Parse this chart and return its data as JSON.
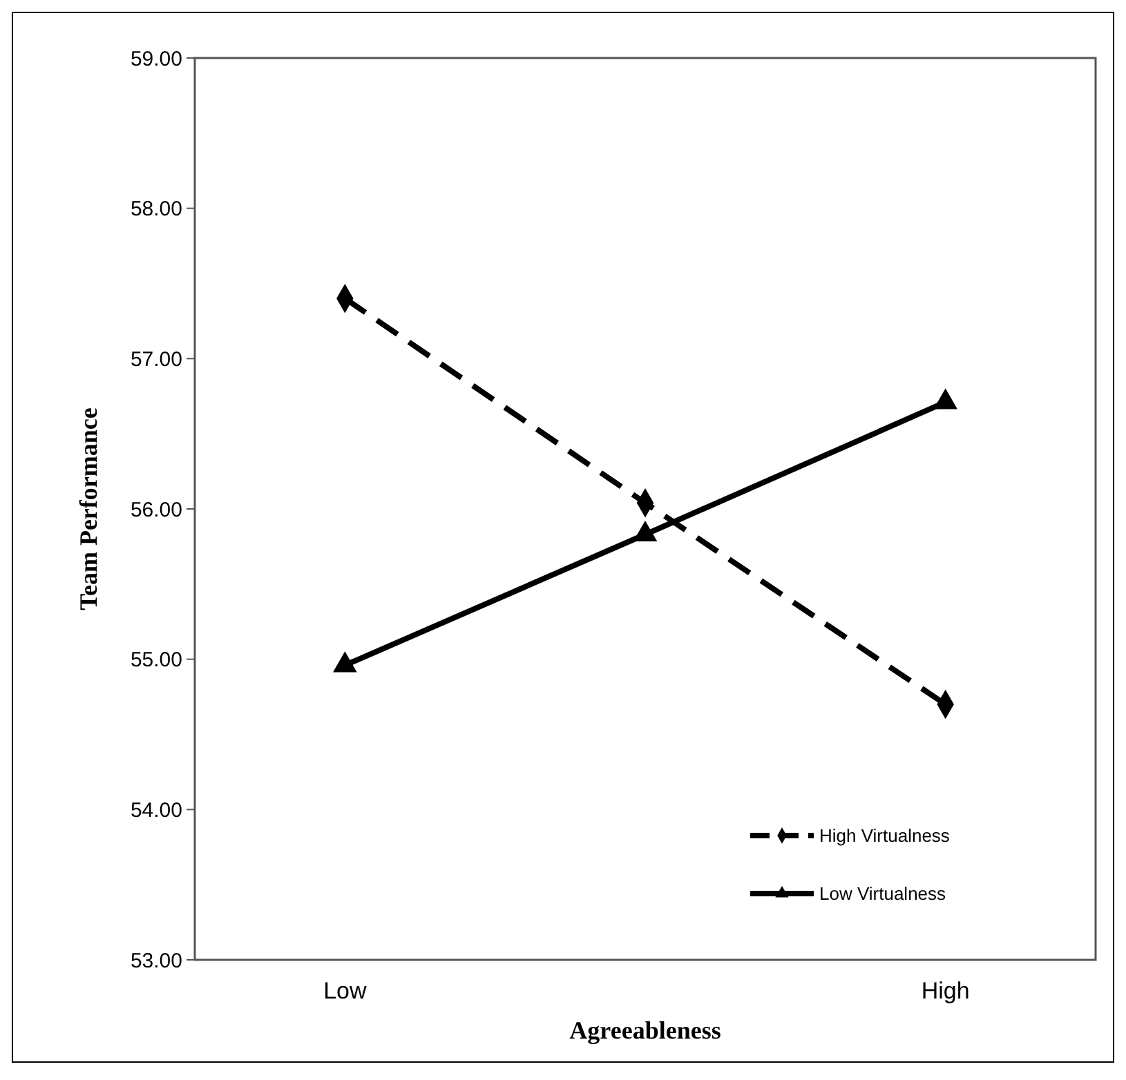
{
  "chart_data": {
    "type": "line",
    "xlabel": "Agreeableness",
    "ylabel": "Team Performance",
    "categories": [
      "Low",
      null,
      "High"
    ],
    "series": [
      {
        "name": "High Virtualness",
        "color": "#000000",
        "values": [
          57.4,
          56.04,
          54.7
        ],
        "marker": "diamond",
        "line_style": "dashed"
      },
      {
        "name": "Low Virtualness",
        "color": "#000000",
        "values": [
          54.96,
          55.83,
          56.71
        ],
        "marker": "triangle",
        "line_style": "solid"
      }
    ],
    "ylim": [
      53,
      59
    ],
    "yticks": [
      {
        "value": 53,
        "label": "53.00"
      },
      {
        "value": 54,
        "label": "54.00"
      },
      {
        "value": 55,
        "label": "55.00"
      },
      {
        "value": 56,
        "label": "56.00"
      },
      {
        "value": 57,
        "label": "57.00"
      },
      {
        "value": 58,
        "label": "58.00"
      },
      {
        "value": 59,
        "label": "59.00"
      }
    ],
    "grid": false,
    "legend": "bottom right"
  }
}
